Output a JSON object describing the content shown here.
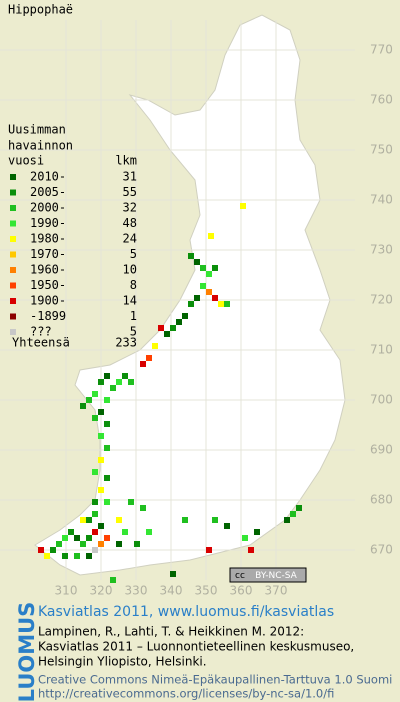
{
  "title": "Hippophaë",
  "legend": {
    "heading": [
      "Uusimman",
      "havainnon"
    ],
    "year_header": "vuosi",
    "count_header": "lkm",
    "entries": [
      {
        "label": "2010-",
        "count": 31,
        "color": "#006400"
      },
      {
        "label": "2005-",
        "count": 55,
        "color": "#0b8f0b"
      },
      {
        "label": "2000-",
        "count": 32,
        "color": "#1fbf1f"
      },
      {
        "label": "1990-",
        "count": 48,
        "color": "#33e633"
      },
      {
        "label": "1980-",
        "count": 24,
        "color": "#ffff00"
      },
      {
        "label": "1970-",
        "count": 5,
        "color": "#ffc800"
      },
      {
        "label": "1960-",
        "count": 10,
        "color": "#ff8000"
      },
      {
        "label": "1950-",
        "count": 8,
        "color": "#ff4000"
      },
      {
        "label": "1900-",
        "count": 14,
        "color": "#d80000"
      },
      {
        "label": "-1899",
        "count": 1,
        "color": "#8c0000"
      },
      {
        "label": "???",
        "count": 5,
        "color": "#c8c8c8"
      }
    ],
    "total_label": "Yhteensä",
    "total": 233
  },
  "map": {
    "yticks": [
      770,
      760,
      750,
      740,
      730,
      720,
      710,
      700,
      690,
      680,
      670
    ],
    "xticks": [
      310,
      320,
      330,
      340,
      350,
      360,
      370
    ]
  },
  "footer": {
    "brand": "LUOMUS",
    "link": "Kasviatlas 2011, www.luomus.fi/kasviatlas",
    "citation": [
      "Lampinen, R., Lahti, T. & Heikkinen M. 2012:",
      "Kasviatlas 2011 – Luonnontieteellinen keskusmuseo,",
      "Helsingin Yliopisto, Helsinki."
    ],
    "license": [
      "Creative Commons Nimeä-Epäkaupallinen-Tarttuva 1.0 Suomi",
      "http://creativecommons.org/licenses/by-nc-sa/1.0/fi"
    ],
    "badge": {
      "icon": "cc",
      "text": "BY-NC-SA"
    }
  }
}
